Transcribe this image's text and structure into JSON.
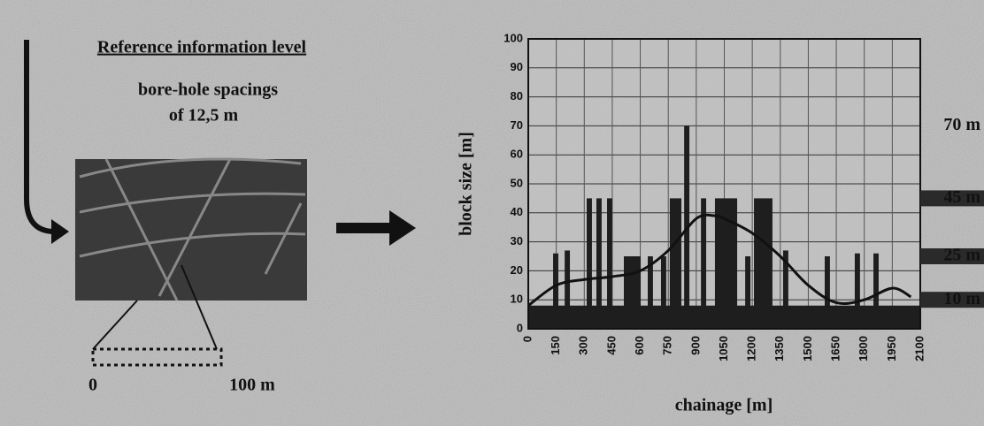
{
  "chart_data": {
    "type": "bar",
    "x_label": "chainage [m]",
    "y_label": "block size [m]",
    "xlim": [
      0,
      2100
    ],
    "xticks": [
      0,
      150,
      300,
      450,
      600,
      750,
      900,
      1050,
      1200,
      1350,
      1500,
      1650,
      1800,
      1950,
      2100
    ],
    "ylim": [
      0,
      100
    ],
    "yticks": [
      0,
      10,
      20,
      30,
      40,
      50,
      60,
      70,
      80,
      90,
      100
    ],
    "grid": true,
    "series": [
      {
        "color": "#1e1e1e",
        "x_start": [
          0,
          133,
          195,
          313,
          365,
          422,
          512,
          640,
          711,
          758,
          835,
          925,
          1000,
          1162,
          1209,
          1365,
          1588,
          1749,
          1849
        ],
        "x_end": [
          2100,
          161,
          223,
          341,
          393,
          450,
          602,
          668,
          739,
          820,
          863,
          953,
          1119,
          1190,
          1308,
          1393,
          1616,
          1777,
          1877
        ],
        "values": [
          8,
          26,
          27,
          45,
          45,
          45,
          25,
          25,
          25,
          45,
          70,
          45,
          45,
          25,
          45,
          27,
          25,
          26,
          26
        ]
      }
    ],
    "curve": {
      "type": "line",
      "color": "#111111",
      "x": [
        0,
        150,
        300,
        450,
        600,
        750,
        900,
        1000,
        1050,
        1200,
        1350,
        1500,
        1650,
        1800,
        1950,
        2050
      ],
      "values": [
        8,
        15,
        17,
        18,
        20,
        27,
        38,
        39,
        38,
        33,
        25,
        15,
        9,
        10,
        14,
        11
      ]
    },
    "levels": [
      {
        "value": 70,
        "label": "70 m"
      },
      {
        "value": 45,
        "label": "45 m"
      },
      {
        "value": 25,
        "label": "25 m"
      },
      {
        "value": 10,
        "label": "10 m"
      }
    ]
  },
  "diagram": {
    "title": "Reference information level",
    "spacing_line1": "bore-hole spacings",
    "spacing_line2": "of 12,5 m",
    "scale_start": "0",
    "scale_end": "100 m"
  }
}
